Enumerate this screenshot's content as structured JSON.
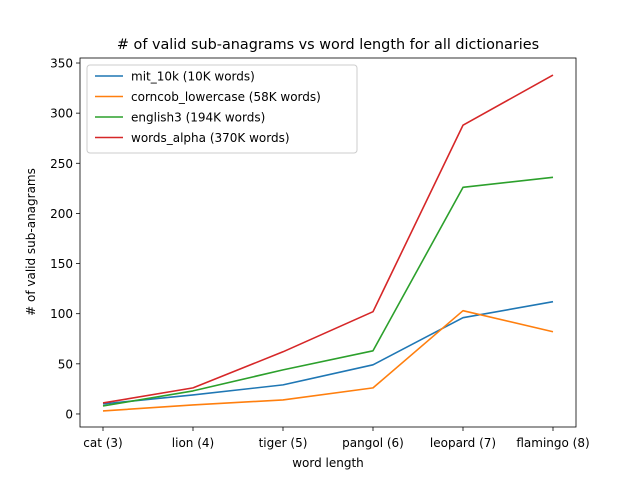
{
  "chart_data": {
    "type": "line",
    "title": "# of valid sub-anagrams vs word length for all dictionaries",
    "xlabel": "word length",
    "ylabel": "# of valid sub-anagrams",
    "categories": [
      "cat (3)",
      "lion (4)",
      "tiger (5)",
      "pangol (6)",
      "leopard (7)",
      "flamingo (8)"
    ],
    "ylim": [
      -13,
      355
    ],
    "yticks": [
      0,
      50,
      100,
      150,
      200,
      250,
      300,
      350
    ],
    "grid": false,
    "legend_position": "top-left",
    "series": [
      {
        "name": "mit_10k (10K words)",
        "color": "#1f77b4",
        "values": [
          10,
          19,
          29,
          49,
          96,
          112
        ]
      },
      {
        "name": "corncob_lowercase (58K words)",
        "color": "#ff7f0e",
        "values": [
          3,
          9,
          14,
          26,
          103,
          82
        ]
      },
      {
        "name": "english3 (194K words)",
        "color": "#2ca02c",
        "values": [
          8,
          23,
          44,
          63,
          226,
          236
        ]
      },
      {
        "name": "words_alpha (370K words)",
        "color": "#d62728",
        "values": [
          11,
          26,
          62,
          102,
          288,
          338
        ]
      }
    ]
  }
}
